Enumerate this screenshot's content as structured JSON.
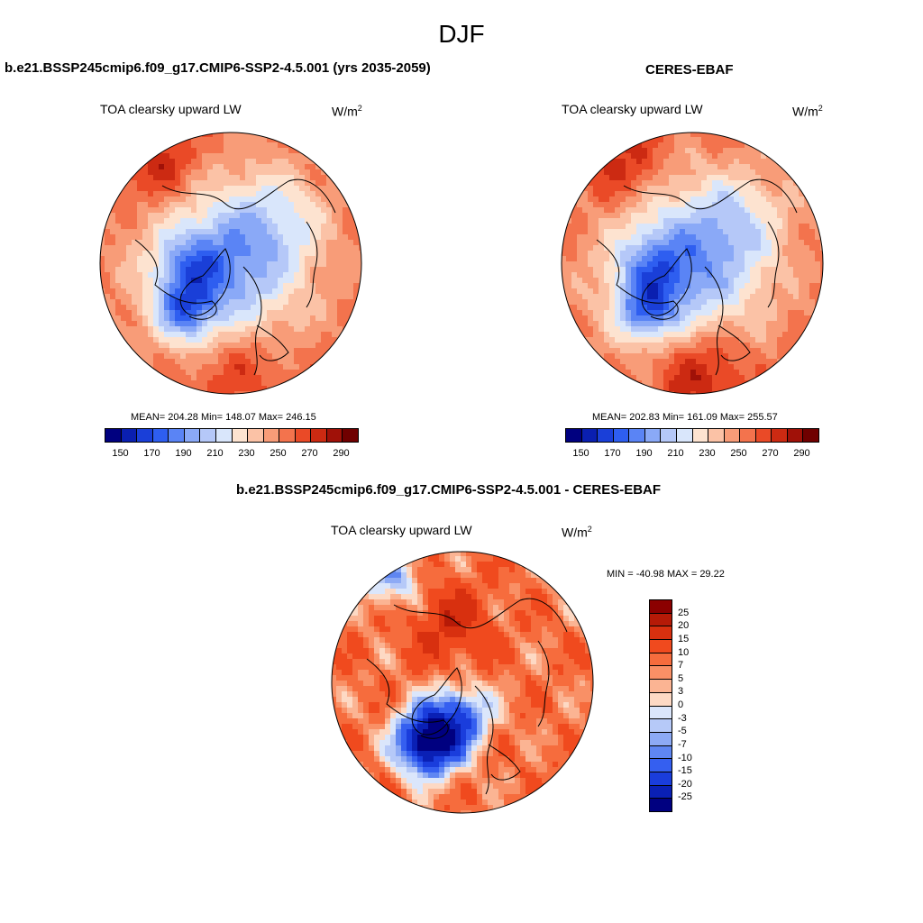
{
  "season": "DJF",
  "panels": [
    {
      "title": "b.e21.BSSP245cmip6.f09_g17.CMIP6-SSP2-4.5.001 (yrs 2035-2059)",
      "variable": "TOA clearsky upward LW",
      "units_base": "W/m",
      "units_exp": "2",
      "stats_text": "MEAN= 204.28  Min= 148.07  Max= 246.15",
      "mean": 204.28,
      "min": 148.07,
      "max": 246.15,
      "pattern": "model"
    },
    {
      "title": "CERES-EBAF",
      "variable": "TOA clearsky upward LW",
      "units_base": "W/m",
      "units_exp": "2",
      "stats_text": "MEAN= 202.83  Min= 161.09  Max= 255.57",
      "mean": 202.83,
      "min": 161.09,
      "max": 255.57,
      "pattern": "obs"
    },
    {
      "title": "b.e21.BSSP245cmip6.f09_g17.CMIP6-SSP2-4.5.001 - CERES-EBAF",
      "variable": "TOA clearsky upward LW",
      "units_base": "W/m",
      "units_exp": "2",
      "stats_text": "MIN = -40.98 MAX =  29.22",
      "min": -40.98,
      "max": 29.22,
      "pattern": "diff"
    }
  ],
  "abs_colorbar": {
    "tick_labels": [
      "150",
      "170",
      "190",
      "210",
      "230",
      "250",
      "270",
      "290"
    ],
    "colors": [
      "#00007f",
      "#0a1fb0",
      "#1a3fd8",
      "#2e5ef0",
      "#5a84f5",
      "#8aa9f7",
      "#b5c8f8",
      "#d9e6fb",
      "#fde3d0",
      "#fbc2a6",
      "#f89c78",
      "#f3734d",
      "#ea4a27",
      "#cc2a12",
      "#a01108",
      "#700000"
    ]
  },
  "diff_colorbar": {
    "tick_labels": [
      "25",
      "20",
      "15",
      "10",
      "7",
      "5",
      "3",
      "0",
      "-3",
      "-5",
      "-7",
      "-10",
      "-15",
      "-20",
      "-25"
    ],
    "colors": [
      "#8b0000",
      "#b51a07",
      "#d8300f",
      "#f04a1e",
      "#f66c3d",
      "#f99066",
      "#fbb493",
      "#fdd9c4",
      "#dbe6fb",
      "#b6c9f8",
      "#8daaf5",
      "#5f86f2",
      "#355ff0",
      "#1a3ddc",
      "#0a20b5",
      "#000080"
    ]
  },
  "chart_data": {
    "type": "heatmap",
    "title": "DJF",
    "projection": "north-polar-stereographic",
    "panels": [
      {
        "name": "b.e21.BSSP245cmip6.f09_g17.CMIP6-SSP2-4.5.001 (yrs 2035-2059)",
        "variable": "TOA clearsky upward LW",
        "units": "W/m2",
        "mean": 204.28,
        "min": 148.07,
        "max": 246.15,
        "levels": [
          150,
          160,
          170,
          180,
          190,
          200,
          210,
          220,
          230,
          240,
          250,
          260,
          270,
          280,
          290
        ]
      },
      {
        "name": "CERES-EBAF",
        "variable": "TOA clearsky upward LW",
        "units": "W/m2",
        "mean": 202.83,
        "min": 161.09,
        "max": 255.57,
        "levels": [
          150,
          160,
          170,
          180,
          190,
          200,
          210,
          220,
          230,
          240,
          250,
          260,
          270,
          280,
          290
        ]
      },
      {
        "name": "b.e21.BSSP245cmip6.f09_g17.CMIP6-SSP2-4.5.001 - CERES-EBAF",
        "variable": "TOA clearsky upward LW",
        "units": "W/m2",
        "min": -40.98,
        "max": 29.22,
        "levels": [
          -25,
          -20,
          -15,
          -10,
          -7,
          -5,
          -3,
          0,
          3,
          5,
          7,
          10,
          15,
          20,
          25
        ]
      }
    ]
  }
}
